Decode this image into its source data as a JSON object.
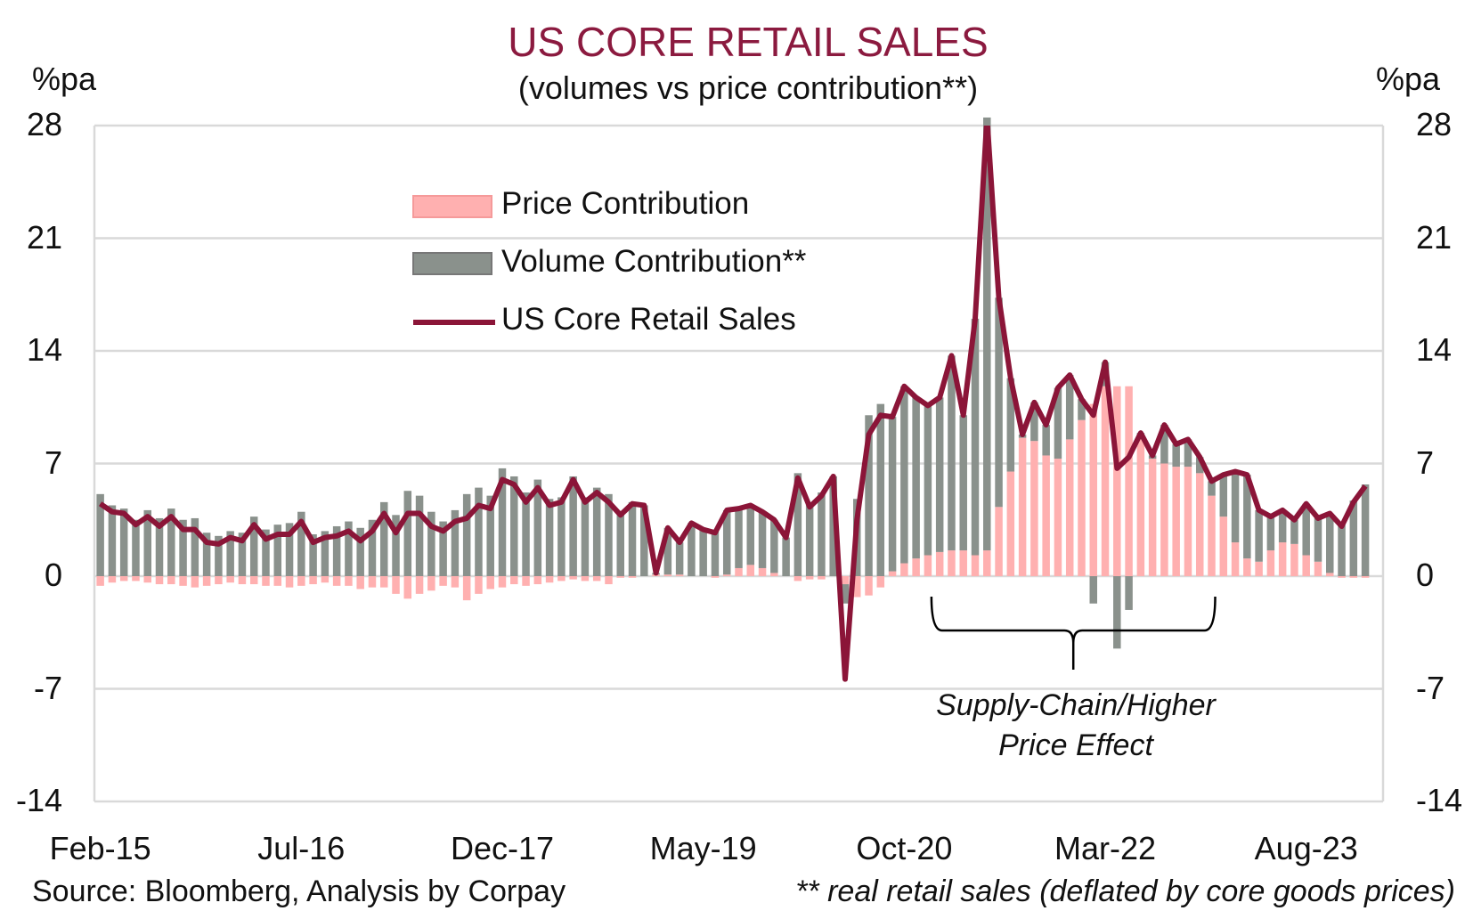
{
  "chart_data": {
    "type": "bar+line",
    "title": "US CORE RETAIL SALES",
    "subtitle": "(volumes vs price contribution**)",
    "ylabel_left": "%pa",
    "ylabel_right": "%pa",
    "ylim": [
      -14,
      28
    ],
    "yticks": [
      "28",
      "21",
      "14",
      "7",
      "0",
      "-7",
      "-14"
    ],
    "grid": true,
    "x_start": "Feb-15",
    "x_end": "Jan-24",
    "frequency": "monthly",
    "xticks": [
      {
        "label": "Feb-15",
        "index": 0
      },
      {
        "label": "Jul-16",
        "index": 17
      },
      {
        "label": "Dec-17",
        "index": 34
      },
      {
        "label": "May-19",
        "index": 51
      },
      {
        "label": "Oct-20",
        "index": 68
      },
      {
        "label": "Mar-22",
        "index": 85
      },
      {
        "label": "Aug-23",
        "index": 102
      }
    ],
    "legend_position": "top-left",
    "series": [
      {
        "name": "Price Contribution",
        "type": "stacked-bar",
        "color": "#ffb0b0",
        "values": [
          -0.6,
          -0.4,
          -0.3,
          -0.3,
          -0.4,
          -0.5,
          -0.5,
          -0.6,
          -0.7,
          -0.6,
          -0.5,
          -0.4,
          -0.5,
          -0.5,
          -0.6,
          -0.6,
          -0.7,
          -0.6,
          -0.5,
          -0.4,
          -0.6,
          -0.6,
          -0.8,
          -0.7,
          -0.7,
          -1.1,
          -1.4,
          -1.1,
          -0.9,
          -0.6,
          -0.7,
          -1.5,
          -1.1,
          -0.8,
          -0.7,
          -0.5,
          -0.6,
          -0.5,
          -0.4,
          -0.3,
          -0.2,
          -0.3,
          -0.3,
          -0.5,
          -0.1,
          -0.1,
          0.0,
          0.1,
          0.1,
          0.1,
          0.0,
          0.0,
          -0.1,
          0.1,
          0.5,
          0.7,
          0.5,
          0.2,
          0.0,
          -0.3,
          -0.2,
          -0.2,
          0.0,
          -0.5,
          -1.3,
          -1.2,
          -0.7,
          0.3,
          0.8,
          1.1,
          1.3,
          1.5,
          1.6,
          1.6,
          1.3,
          1.6,
          4.3,
          6.5,
          8.6,
          8.4,
          7.5,
          7.3,
          8.5,
          9.7,
          10.7,
          11.8,
          11.8,
          11.8,
          8.7,
          7.3,
          7.0,
          6.8,
          6.8,
          6.4,
          5.0,
          3.7,
          2.1,
          1.1,
          0.9,
          1.6,
          2.1,
          2.0,
          1.3,
          0.9,
          0.2,
          -0.1,
          -0.1,
          -0.1
        ]
      },
      {
        "name": "Volume Contribution**",
        "type": "stacked-bar",
        "color": "#8a918c",
        "values": [
          5.1,
          4.4,
          4.2,
          3.5,
          4.1,
          3.6,
          4.2,
          3.5,
          3.6,
          2.7,
          2.5,
          2.8,
          2.7,
          3.7,
          2.9,
          3.2,
          3.3,
          4.0,
          2.6,
          2.8,
          3.1,
          3.4,
          3.0,
          3.5,
          4.6,
          3.8,
          5.3,
          5.0,
          4.0,
          3.4,
          4.1,
          5.1,
          5.5,
          5.0,
          6.7,
          6.2,
          5.2,
          6.0,
          4.8,
          4.9,
          6.2,
          4.9,
          5.5,
          5.1,
          3.9,
          4.6,
          4.4,
          0.1,
          2.9,
          2.0,
          3.3,
          2.9,
          2.8,
          4.0,
          3.7,
          3.7,
          3.5,
          3.3,
          2.4,
          6.4,
          4.5,
          5.2,
          6.2,
          -1.2,
          4.8,
          10.0,
          10.7,
          9.6,
          11.0,
          10.0,
          9.3,
          9.6,
          12.1,
          8.4,
          14.7,
          26.9,
          13.0,
          5.8,
          0.2,
          2.4,
          1.9,
          4.4,
          4.0,
          1.3,
          -1.7,
          1.5,
          -4.5,
          -2.1,
          0.2,
          0.2,
          2.4,
          1.4,
          1.7,
          1.0,
          0.9,
          2.6,
          4.4,
          5.2,
          3.2,
          2.1,
          2.0,
          1.5,
          3.2,
          2.7,
          3.7,
          3.2,
          4.7,
          5.7
        ]
      },
      {
        "name": "US Core Retail Sales",
        "type": "line",
        "color": "#8b1538",
        "values": [
          4.5,
          4.0,
          3.9,
          3.2,
          3.7,
          3.1,
          3.7,
          2.9,
          2.9,
          2.1,
          2.0,
          2.4,
          2.2,
          3.2,
          2.3,
          2.6,
          2.6,
          3.4,
          2.1,
          2.4,
          2.5,
          2.8,
          2.2,
          2.8,
          3.9,
          2.7,
          3.9,
          3.9,
          3.1,
          2.8,
          3.4,
          3.6,
          4.4,
          4.2,
          6.0,
          5.7,
          4.6,
          5.5,
          4.4,
          4.6,
          6.0,
          4.6,
          5.2,
          4.6,
          3.8,
          4.5,
          4.4,
          0.2,
          3.0,
          2.1,
          3.3,
          2.9,
          2.7,
          4.1,
          4.2,
          4.4,
          4.0,
          3.5,
          2.4,
          6.1,
          4.3,
          5.0,
          6.2,
          -6.4,
          3.5,
          8.8,
          10.0,
          9.9,
          11.8,
          11.1,
          10.6,
          11.1,
          13.7,
          10.0,
          16.0,
          28.5,
          17.3,
          12.3,
          8.8,
          10.8,
          9.4,
          11.7,
          12.5,
          11.0,
          10.0,
          13.3,
          6.7,
          7.4,
          8.9,
          7.5,
          9.4,
          8.2,
          8.5,
          7.4,
          5.9,
          6.3,
          6.5,
          6.3,
          4.1,
          3.7,
          4.1,
          3.5,
          4.5,
          3.6,
          3.9,
          3.1,
          4.6,
          5.6
        ]
      }
    ],
    "annotation": {
      "lines": [
        "Supply-Chain/Higher",
        "Price Effect"
      ],
      "from_index": 70,
      "to_index": 94
    }
  },
  "source": "Source: Bloomberg, Analysis by Corpay",
  "footnote": "** real retail sales (deflated by core goods prices)"
}
